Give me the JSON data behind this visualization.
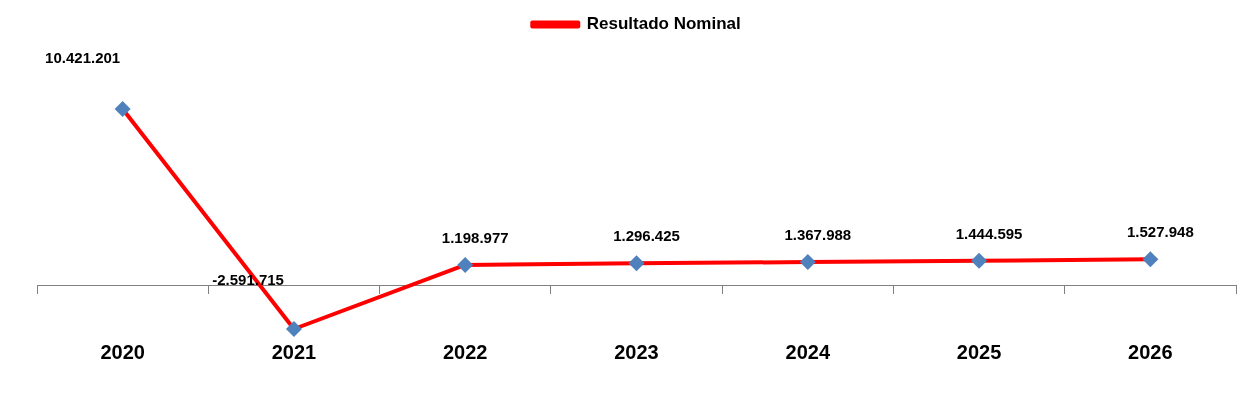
{
  "chart_data": {
    "type": "line",
    "categories": [
      "2020",
      "2021",
      "2022",
      "2023",
      "2024",
      "2025",
      "2026"
    ],
    "series": [
      {
        "name": "Resultado Nominal",
        "color": "#ff0000",
        "colors": [
          "#4f81bd",
          "#4f81bd",
          "#4f81bd",
          "#4f81bd",
          "#4f81bd",
          "#4f81bd",
          "#4f81bd"
        ],
        "values": [
          10421201,
          -2591715,
          1198977,
          1296425,
          1367988,
          1444595,
          1527948
        ],
        "value_labels": [
          "10.421.201",
          "-2.591.715",
          "1.198.977",
          "1.296.425",
          "1.367.988",
          "1.444.595",
          "1.527.948"
        ]
      }
    ],
    "marker": "diamond",
    "legend": "top",
    "grid": false,
    "tick_labels": "x"
  }
}
